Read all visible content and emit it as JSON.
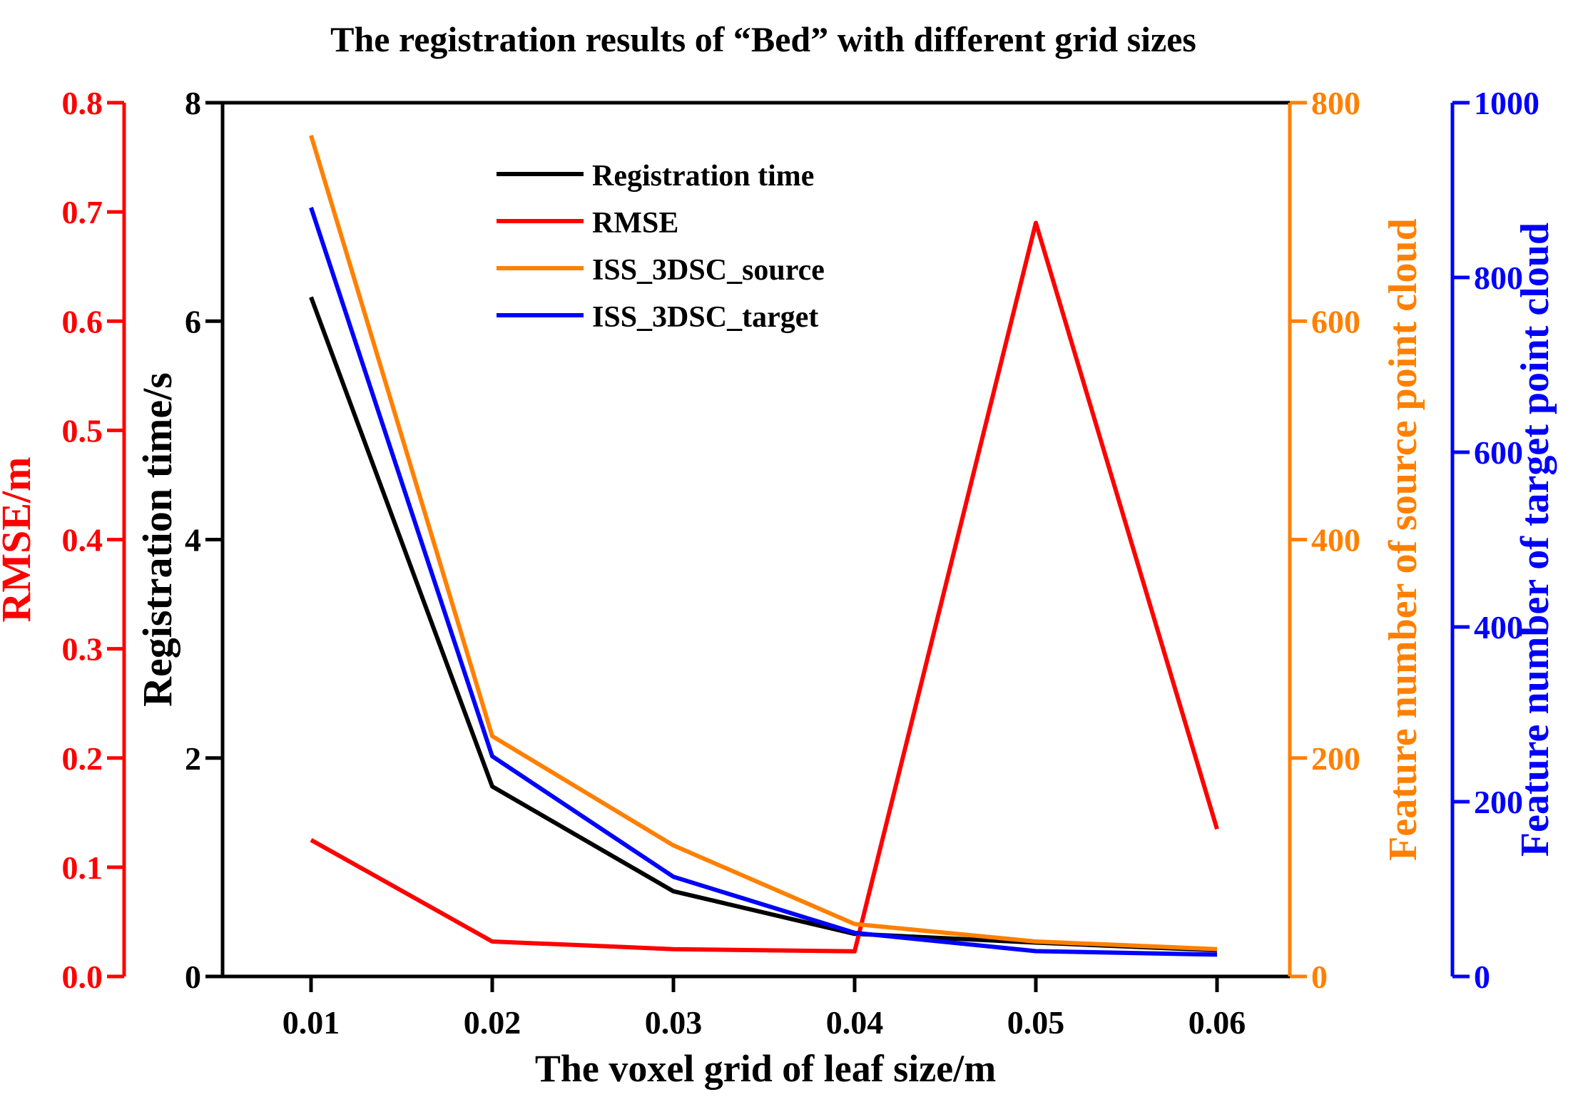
{
  "chart_data": {
    "type": "line",
    "title": "The registration results of “Bed” with different grid sizes",
    "xlabel": "The voxel grid of leaf size/m",
    "x": [
      0.01,
      0.02,
      0.03,
      0.04,
      0.05,
      0.06
    ],
    "x_tick_labels": [
      "0.01",
      "0.02",
      "0.03",
      "0.04",
      "0.05",
      "0.06"
    ],
    "axes": [
      {
        "id": "rmse",
        "label": "RMSE/m",
        "color": "#ff0000",
        "range": [
          0,
          0.8
        ],
        "ticks": [
          0.0,
          0.1,
          0.2,
          0.3,
          0.4,
          0.5,
          0.6,
          0.7,
          0.8
        ],
        "tick_labels": [
          "0.0",
          "0.1",
          "0.2",
          "0.3",
          "0.4",
          "0.5",
          "0.6",
          "0.7",
          "0.8"
        ]
      },
      {
        "id": "time",
        "label": "Registration time/s",
        "color": "#000000",
        "range": [
          0,
          8
        ],
        "ticks": [
          0,
          2,
          4,
          6,
          8
        ],
        "tick_labels": [
          "0",
          "2",
          "4",
          "6",
          "8"
        ]
      },
      {
        "id": "source",
        "label": "Feature number of source point cloud",
        "color": "#ff8000",
        "range": [
          0,
          800
        ],
        "ticks": [
          0,
          200,
          400,
          600,
          800
        ],
        "tick_labels": [
          "0",
          "200",
          "400",
          "600",
          "800"
        ]
      },
      {
        "id": "target",
        "label": "Feature number of target point cloud",
        "color": "#0000ff",
        "range": [
          0,
          1000
        ],
        "ticks": [
          0,
          200,
          400,
          600,
          800,
          1000
        ],
        "tick_labels": [
          "0",
          "200",
          "400",
          "600",
          "800",
          "1000"
        ]
      }
    ],
    "series": [
      {
        "name": "Registration time",
        "axis": "time",
        "color": "#000000",
        "values": [
          6.22,
          1.74,
          0.78,
          0.39,
          0.31,
          0.24
        ]
      },
      {
        "name": "RMSE",
        "axis": "rmse",
        "color": "#ff0000",
        "values": [
          0.125,
          0.032,
          0.025,
          0.023,
          0.69,
          0.135
        ]
      },
      {
        "name": "ISS_3DSC_source",
        "axis": "source",
        "color": "#ff8000",
        "values": [
          770,
          220,
          120,
          48,
          32,
          25
        ]
      },
      {
        "name": "ISS_3DSC_target",
        "axis": "target",
        "color": "#0000ff",
        "values": [
          880,
          252,
          114,
          50,
          29,
          25
        ]
      }
    ],
    "legend_position": "top-center",
    "grid": false
  }
}
